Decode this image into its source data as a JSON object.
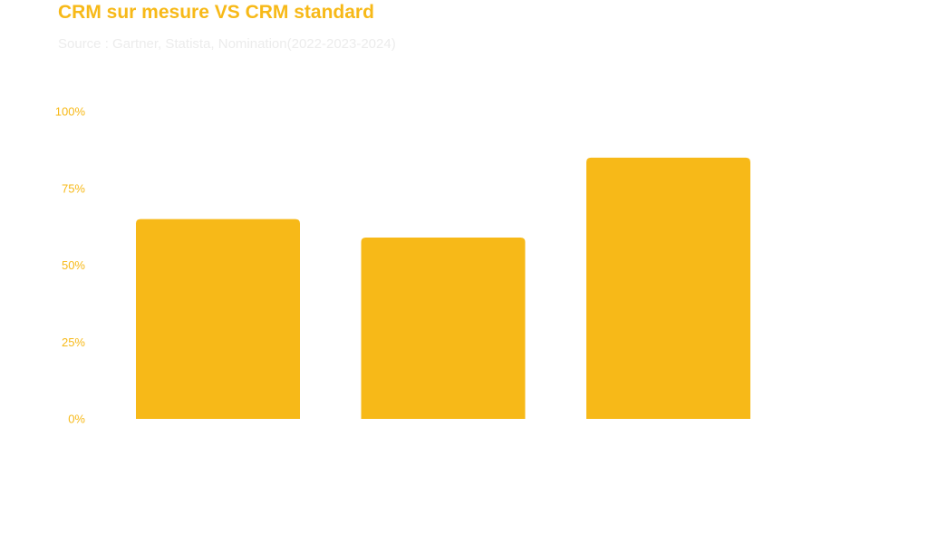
{
  "title": "CRM sur mesure VS CRM standard",
  "subtitle": "Source : Gartner, Statista, Nomination(2022-2023-2024)",
  "colors": {
    "accent": "#f7b918",
    "subtitle": "#ececec"
  },
  "chart_data": {
    "type": "bar",
    "title": "CRM sur mesure VS CRM standard",
    "xlabel": "",
    "ylabel": "",
    "categories": [
      "",
      "",
      ""
    ],
    "values": [
      65,
      59,
      85
    ],
    "ylim": [
      0,
      100
    ],
    "yticks": [
      "0%",
      "25%",
      "50%",
      "75%",
      "100%"
    ],
    "grid": false,
    "legend": "none"
  }
}
